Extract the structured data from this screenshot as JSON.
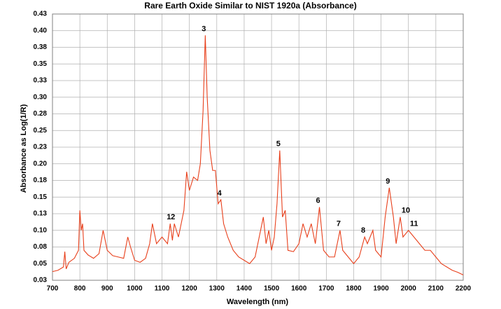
{
  "chart_data": {
    "type": "line",
    "title": "Rare Earth Oxide Similar to NIST 1920a (Absorbance)",
    "x_label": "Wavelength (nm)",
    "y_label": "Absorbance as Log(1/R)",
    "xlim": [
      700,
      2200
    ],
    "xticks": [
      700,
      800,
      900,
      1000,
      1100,
      1200,
      1300,
      1400,
      1500,
      1600,
      1700,
      1800,
      1900,
      2000,
      2100,
      2200
    ],
    "ylim": [
      0.025,
      0.425
    ],
    "yticks": [
      {
        "value": 0.025,
        "label": "0.03"
      },
      0.05,
      {
        "value": 0.075,
        "label": "0.08"
      },
      {
        "value": 0.1,
        "label": "0.10"
      },
      {
        "value": 0.125,
        "label": "0.13"
      },
      0.15,
      {
        "value": 0.175,
        "label": "0.18"
      },
      {
        "value": 0.2,
        "label": "0.20"
      },
      {
        "value": 0.225,
        "label": "0.23"
      },
      0.25,
      {
        "value": 0.275,
        "label": "0.28"
      },
      {
        "value": 0.3,
        "label": "0.30"
      },
      {
        "value": 0.325,
        "label": "0.33"
      },
      0.35,
      {
        "value": 0.375,
        "label": "0.38"
      },
      {
        "value": 0.4,
        "label": "0.40"
      },
      {
        "value": 0.425,
        "label": "0.43"
      }
    ],
    "grid": true,
    "x": [
      700,
      720,
      740,
      745,
      750,
      760,
      780,
      795,
      800,
      805,
      810,
      815,
      830,
      850,
      870,
      885,
      900,
      920,
      940,
      960,
      975,
      985,
      1000,
      1020,
      1040,
      1055,
      1065,
      1080,
      1100,
      1120,
      1130,
      1138,
      1145,
      1160,
      1180,
      1190,
      1200,
      1215,
      1230,
      1240,
      1250,
      1258,
      1265,
      1275,
      1285,
      1295,
      1305,
      1315,
      1325,
      1340,
      1360,
      1380,
      1400,
      1420,
      1440,
      1460,
      1470,
      1480,
      1490,
      1500,
      1510,
      1520,
      1530,
      1540,
      1550,
      1560,
      1580,
      1600,
      1615,
      1630,
      1645,
      1660,
      1675,
      1690,
      1710,
      1730,
      1750,
      1760,
      1780,
      1800,
      1820,
      1840,
      1850,
      1870,
      1880,
      1900,
      1915,
      1930,
      1945,
      1955,
      1970,
      1980,
      2000,
      2020,
      2040,
      2060,
      2080,
      2100,
      2120,
      2140,
      2160,
      2180,
      2200
    ],
    "series": [
      {
        "name": "Absorbance",
        "color": "#e8401c",
        "values": [
          0.038,
          0.04,
          0.045,
          0.068,
          0.042,
          0.052,
          0.058,
          0.07,
          0.13,
          0.1,
          0.11,
          0.07,
          0.063,
          0.058,
          0.065,
          0.1,
          0.07,
          0.062,
          0.06,
          0.058,
          0.09,
          0.075,
          0.055,
          0.052,
          0.058,
          0.08,
          0.11,
          0.08,
          0.09,
          0.08,
          0.11,
          0.085,
          0.11,
          0.09,
          0.13,
          0.188,
          0.16,
          0.18,
          0.175,
          0.2,
          0.28,
          0.393,
          0.3,
          0.22,
          0.19,
          0.19,
          0.14,
          0.146,
          0.11,
          0.09,
          0.07,
          0.06,
          0.055,
          0.05,
          0.06,
          0.1,
          0.12,
          0.08,
          0.1,
          0.07,
          0.09,
          0.14,
          0.22,
          0.12,
          0.13,
          0.07,
          0.068,
          0.08,
          0.11,
          0.09,
          0.11,
          0.08,
          0.135,
          0.07,
          0.06,
          0.06,
          0.1,
          0.07,
          0.06,
          0.05,
          0.06,
          0.09,
          0.08,
          0.1,
          0.07,
          0.06,
          0.12,
          0.164,
          0.12,
          0.08,
          0.12,
          0.09,
          0.1,
          0.09,
          0.08,
          0.07,
          0.07,
          0.06,
          0.05,
          0.045,
          0.04,
          0.037,
          0.033
        ]
      }
    ],
    "annotations": [
      {
        "text": "1",
        "x": 1130,
        "y": 0.11
      },
      {
        "text": "2",
        "x": 1145,
        "y": 0.11
      },
      {
        "text": "3",
        "x": 1258,
        "y": 0.393
      },
      {
        "text": "4",
        "x": 1315,
        "y": 0.146
      },
      {
        "text": "5",
        "x": 1530,
        "y": 0.22
      },
      {
        "text": "6",
        "x": 1675,
        "y": 0.135
      },
      {
        "text": "7",
        "x": 1750,
        "y": 0.1
      },
      {
        "text": "8",
        "x": 1840,
        "y": 0.09
      },
      {
        "text": "9",
        "x": 1930,
        "y": 0.164
      },
      {
        "text": "10",
        "x": 1970,
        "y": 0.12
      },
      {
        "text": "11",
        "x": 2000,
        "y": 0.1
      }
    ]
  }
}
